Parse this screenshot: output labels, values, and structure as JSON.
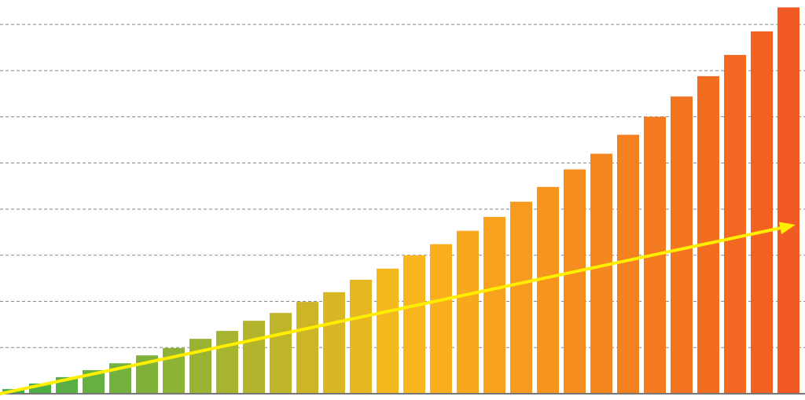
{
  "chart_data": {
    "type": "bar",
    "categories": [
      null,
      null,
      null,
      null,
      null,
      null,
      null,
      null,
      null,
      null,
      null,
      null,
      null,
      null,
      null,
      null,
      null,
      null,
      null,
      null,
      null,
      null,
      null,
      null,
      null,
      null,
      null,
      null,
      null,
      null
    ],
    "values": [
      0.1,
      0.22,
      0.36,
      0.51,
      0.66,
      0.83,
      0.99,
      1.19,
      1.36,
      1.58,
      1.75,
      1.99,
      2.2,
      2.47,
      2.71,
      3.0,
      3.24,
      3.53,
      3.83,
      4.16,
      4.48,
      4.86,
      5.2,
      5.61,
      6.0,
      6.44,
      6.88,
      7.34,
      7.85,
      8.37
    ],
    "color_gradient": [
      "#3fae49",
      "#f9b81c",
      "#f15a22"
    ],
    "ylim": [
      0,
      8.53
    ],
    "yticks": [
      0,
      1,
      2,
      3,
      4,
      5,
      6,
      7,
      8
    ],
    "grid": true,
    "trendline": {
      "color": "#ffee00",
      "values": [
        0,
        3.66
      ]
    }
  }
}
